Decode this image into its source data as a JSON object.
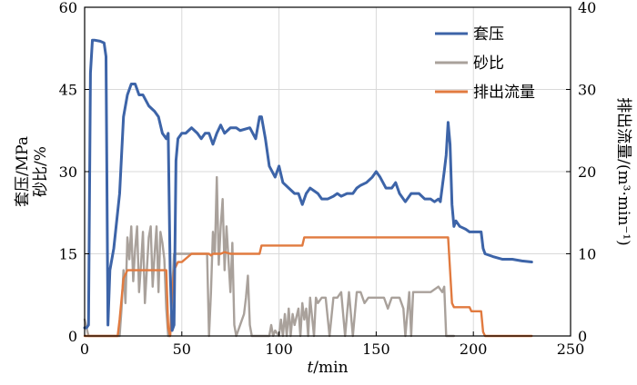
{
  "chart_data": {
    "type": "line",
    "xlabel_italic": "t",
    "xlabel_rest": "/min",
    "ylabel_left_line1": "套压/MPa",
    "ylabel_left_line2": "砂比/%",
    "ylabel_right": "排出流量/(m³·min⁻¹)",
    "xlim": [
      0,
      250
    ],
    "ylim_left": [
      0,
      60
    ],
    "ylim_right": [
      0,
      40
    ],
    "xticks": [
      0,
      50,
      100,
      150,
      200,
      250
    ],
    "yticks_left": [
      0,
      15,
      30,
      45,
      60
    ],
    "yticks_right": [
      0,
      10,
      20,
      30,
      40
    ],
    "grid": true,
    "legend_position": "top-right",
    "series": [
      {
        "name": "套压",
        "axis": "left",
        "color": "#3d64a8",
        "points": [
          [
            0,
            1.5
          ],
          [
            1,
            1.5
          ],
          [
            2,
            2
          ],
          [
            3,
            48
          ],
          [
            4,
            54
          ],
          [
            5,
            54
          ],
          [
            8,
            53.8
          ],
          [
            10,
            53.5
          ],
          [
            11,
            51
          ],
          [
            12,
            2
          ],
          [
            13,
            12
          ],
          [
            15,
            16
          ],
          [
            18,
            26
          ],
          [
            20,
            40
          ],
          [
            22,
            44
          ],
          [
            24,
            46
          ],
          [
            26,
            46
          ],
          [
            28,
            44
          ],
          [
            30,
            44
          ],
          [
            33,
            42
          ],
          [
            36,
            41
          ],
          [
            38,
            40
          ],
          [
            40,
            37
          ],
          [
            42,
            36
          ],
          [
            43,
            37
          ],
          [
            44,
            12
          ],
          [
            45,
            1
          ],
          [
            46,
            2
          ],
          [
            47,
            32
          ],
          [
            48,
            36
          ],
          [
            50,
            37
          ],
          [
            52,
            37
          ],
          [
            55,
            38
          ],
          [
            58,
            37
          ],
          [
            60,
            36
          ],
          [
            62,
            37
          ],
          [
            64,
            37
          ],
          [
            66,
            35
          ],
          [
            68,
            37
          ],
          [
            70,
            38.5
          ],
          [
            72,
            37
          ],
          [
            75,
            38
          ],
          [
            78,
            38
          ],
          [
            80,
            37.5
          ],
          [
            85,
            38
          ],
          [
            88,
            36
          ],
          [
            90,
            40
          ],
          [
            91,
            40
          ],
          [
            93,
            36
          ],
          [
            95,
            31
          ],
          [
            98,
            29
          ],
          [
            100,
            31
          ],
          [
            102,
            28
          ],
          [
            105,
            27
          ],
          [
            108,
            26
          ],
          [
            110,
            26
          ],
          [
            112,
            24
          ],
          [
            114,
            26
          ],
          [
            116,
            27
          ],
          [
            118,
            26.5
          ],
          [
            120,
            26
          ],
          [
            122,
            25
          ],
          [
            125,
            25
          ],
          [
            128,
            25.5
          ],
          [
            130,
            26
          ],
          [
            132,
            25.5
          ],
          [
            135,
            26
          ],
          [
            138,
            26
          ],
          [
            140,
            27
          ],
          [
            142,
            27.5
          ],
          [
            145,
            28
          ],
          [
            148,
            29
          ],
          [
            150,
            30
          ],
          [
            152,
            29
          ],
          [
            155,
            27
          ],
          [
            158,
            27
          ],
          [
            160,
            28
          ],
          [
            162,
            26
          ],
          [
            165,
            24.5
          ],
          [
            168,
            26
          ],
          [
            170,
            26
          ],
          [
            172,
            26
          ],
          [
            175,
            25
          ],
          [
            178,
            25
          ],
          [
            180,
            24.5
          ],
          [
            182,
            25
          ],
          [
            183,
            24.5
          ],
          [
            185,
            30
          ],
          [
            186,
            33
          ],
          [
            187,
            39
          ],
          [
            188,
            35
          ],
          [
            189,
            24
          ],
          [
            190,
            20
          ],
          [
            191,
            21
          ],
          [
            193,
            20
          ],
          [
            196,
            19.5
          ],
          [
            198,
            19
          ],
          [
            200,
            19
          ],
          [
            202,
            19
          ],
          [
            204,
            19
          ],
          [
            205,
            16
          ],
          [
            206,
            15
          ],
          [
            210,
            14.5
          ],
          [
            215,
            14
          ],
          [
            220,
            14
          ],
          [
            225,
            13.7
          ],
          [
            230,
            13.5
          ]
        ]
      },
      {
        "name": "砂比",
        "axis": "left",
        "color": "#a9a19b",
        "points": [
          [
            0,
            3
          ],
          [
            2,
            0
          ],
          [
            14,
            0
          ],
          [
            18,
            0
          ],
          [
            19,
            5
          ],
          [
            20,
            12
          ],
          [
            21,
            6
          ],
          [
            22,
            18
          ],
          [
            23,
            14
          ],
          [
            24,
            20
          ],
          [
            25,
            10
          ],
          [
            26,
            16
          ],
          [
            27,
            20
          ],
          [
            28,
            8
          ],
          [
            29,
            13
          ],
          [
            30,
            19
          ],
          [
            31,
            6
          ],
          [
            32,
            12
          ],
          [
            33,
            18
          ],
          [
            34,
            20
          ],
          [
            35,
            9
          ],
          [
            36,
            15
          ],
          [
            37,
            20
          ],
          [
            38,
            8
          ],
          [
            39,
            19
          ],
          [
            40,
            17
          ],
          [
            41,
            14
          ],
          [
            42,
            5
          ],
          [
            43,
            0
          ],
          [
            44,
            0
          ],
          [
            45,
            8
          ],
          [
            46,
            15
          ],
          [
            48,
            15
          ],
          [
            50,
            15
          ],
          [
            55,
            15
          ],
          [
            60,
            15
          ],
          [
            63,
            15
          ],
          [
            64,
            0
          ],
          [
            65,
            8
          ],
          [
            66,
            19
          ],
          [
            67,
            15
          ],
          [
            68,
            29
          ],
          [
            69,
            13
          ],
          [
            70,
            20
          ],
          [
            71,
            25
          ],
          [
            72,
            12
          ],
          [
            73,
            20
          ],
          [
            74,
            14
          ],
          [
            75,
            8
          ],
          [
            76,
            17
          ],
          [
            77,
            2
          ],
          [
            78,
            0
          ],
          [
            80,
            2
          ],
          [
            82,
            4
          ],
          [
            83,
            7
          ],
          [
            84,
            11
          ],
          [
            85,
            2
          ],
          [
            86,
            0
          ],
          [
            95,
            0
          ],
          [
            96,
            2
          ],
          [
            97,
            0
          ],
          [
            98,
            1
          ],
          [
            100,
            0
          ],
          [
            101,
            3
          ],
          [
            102,
            0
          ],
          [
            103,
            4
          ],
          [
            104,
            0
          ],
          [
            105,
            5
          ],
          [
            106,
            0
          ],
          [
            107,
            4
          ],
          [
            108,
            2
          ],
          [
            110,
            5
          ],
          [
            111,
            0
          ],
          [
            112,
            6
          ],
          [
            113,
            3
          ],
          [
            114,
            5
          ],
          [
            115,
            0
          ],
          [
            116,
            7
          ],
          [
            118,
            0
          ],
          [
            119,
            7
          ],
          [
            120,
            6
          ],
          [
            122,
            7
          ],
          [
            124,
            7
          ],
          [
            126,
            0
          ],
          [
            128,
            7
          ],
          [
            130,
            7
          ],
          [
            132,
            8
          ],
          [
            134,
            0
          ],
          [
            136,
            8
          ],
          [
            138,
            0
          ],
          [
            140,
            8
          ],
          [
            142,
            8
          ],
          [
            144,
            6
          ],
          [
            146,
            7
          ],
          [
            150,
            7
          ],
          [
            154,
            7
          ],
          [
            156,
            5
          ],
          [
            158,
            7
          ],
          [
            162,
            7
          ],
          [
            164,
            5
          ],
          [
            165,
            0
          ],
          [
            166,
            4
          ],
          [
            167,
            8
          ],
          [
            168,
            0
          ],
          [
            169,
            8
          ],
          [
            170,
            8
          ],
          [
            174,
            8
          ],
          [
            178,
            8
          ],
          [
            182,
            9
          ],
          [
            184,
            8
          ],
          [
            185,
            9
          ],
          [
            186,
            0
          ],
          [
            188,
            0
          ],
          [
            190,
            0
          ]
        ]
      },
      {
        "name": "排出流量",
        "axis": "right",
        "color": "#e17a3f",
        "points": [
          [
            0,
            0
          ],
          [
            14,
            0
          ],
          [
            17,
            0
          ],
          [
            18,
            2
          ],
          [
            20,
            7
          ],
          [
            22,
            8
          ],
          [
            24,
            8
          ],
          [
            30,
            8
          ],
          [
            35,
            8
          ],
          [
            40,
            8
          ],
          [
            42,
            8
          ],
          [
            43,
            1
          ],
          [
            44,
            0
          ],
          [
            45,
            5
          ],
          [
            46,
            8
          ],
          [
            48,
            9
          ],
          [
            50,
            9
          ],
          [
            55,
            10
          ],
          [
            60,
            10
          ],
          [
            64,
            10
          ],
          [
            65,
            9.8
          ],
          [
            66,
            10
          ],
          [
            68,
            10
          ],
          [
            70,
            10
          ],
          [
            72,
            10.2
          ],
          [
            75,
            10
          ],
          [
            80,
            10
          ],
          [
            85,
            10
          ],
          [
            90,
            10
          ],
          [
            91,
            11
          ],
          [
            93,
            11
          ],
          [
            95,
            11
          ],
          [
            100,
            11
          ],
          [
            105,
            11
          ],
          [
            110,
            11
          ],
          [
            112,
            11
          ],
          [
            113,
            12
          ],
          [
            115,
            12
          ],
          [
            120,
            12
          ],
          [
            130,
            12
          ],
          [
            140,
            12
          ],
          [
            150,
            12
          ],
          [
            160,
            12
          ],
          [
            170,
            12
          ],
          [
            175,
            12
          ],
          [
            180,
            12
          ],
          [
            185,
            12
          ],
          [
            187,
            12
          ],
          [
            188,
            8
          ],
          [
            189,
            4
          ],
          [
            190,
            3.5
          ],
          [
            195,
            3.5
          ],
          [
            198,
            3.5
          ],
          [
            199,
            3
          ],
          [
            200,
            3
          ],
          [
            202,
            3
          ],
          [
            204,
            3
          ],
          [
            205,
            0.5
          ],
          [
            206,
            0
          ],
          [
            210,
            0
          ],
          [
            230,
            0
          ]
        ]
      }
    ]
  }
}
